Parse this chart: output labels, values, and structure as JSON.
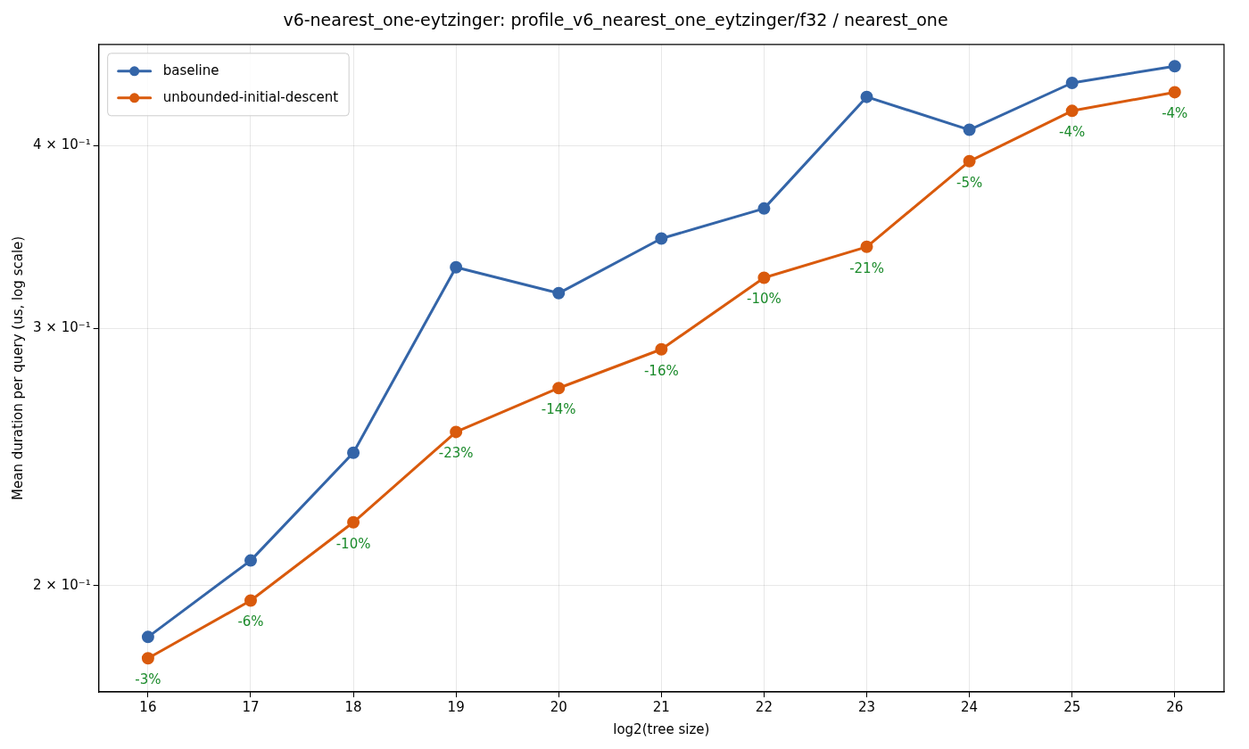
{
  "chart_data": {
    "type": "line",
    "title": "v6-nearest_one-eytzinger: profile_v6_nearest_one_eytzinger/f32 / nearest_one",
    "xlabel": "log2(tree size)",
    "ylabel": "Mean duration per query (us, log scale)",
    "x": [
      16,
      17,
      18,
      19,
      20,
      21,
      22,
      23,
      24,
      25,
      26
    ],
    "series": [
      {
        "name": "baseline",
        "color": "#3465a8",
        "values": [
          0.1845,
          0.2081,
          0.2466,
          0.3302,
          0.317,
          0.3455,
          0.3622,
          0.4318,
          0.41,
          0.4414,
          0.4532
        ]
      },
      {
        "name": "unbounded-initial-descent",
        "color": "#d95a0c",
        "values": [
          0.1784,
          0.1954,
          0.221,
          0.2548,
          0.273,
          0.2902,
          0.3248,
          0.341,
          0.3902,
          0.4224,
          0.435
        ]
      }
    ],
    "annotations": [
      {
        "text": "-3%",
        "x": 16,
        "y": 0.1784
      },
      {
        "text": "-6%",
        "x": 17,
        "y": 0.1954
      },
      {
        "text": "-10%",
        "x": 18,
        "y": 0.221
      },
      {
        "text": "-23%",
        "x": 19,
        "y": 0.2548
      },
      {
        "text": "-14%",
        "x": 20,
        "y": 0.273
      },
      {
        "text": "-16%",
        "x": 21,
        "y": 0.2902
      },
      {
        "text": "-10%",
        "x": 22,
        "y": 0.3248
      },
      {
        "text": "-21%",
        "x": 23,
        "y": 0.341
      },
      {
        "text": "-5%",
        "x": 24,
        "y": 0.3902
      },
      {
        "text": "-4%",
        "x": 25,
        "y": 0.4224
      },
      {
        "text": "-4%",
        "x": 26,
        "y": 0.435
      }
    ],
    "xlim": [
      15.52,
      26.48
    ],
    "xticks": [
      16,
      17,
      18,
      19,
      20,
      21,
      22,
      23,
      24,
      25,
      26
    ],
    "ylim": [
      0.1692,
      0.469
    ],
    "yticks": [
      {
        "value": 0.2,
        "label": "2 × 10⁻¹"
      },
      {
        "value": 0.3,
        "label": "3 × 10⁻¹"
      },
      {
        "value": 0.4,
        "label": "4 × 10⁻¹"
      }
    ],
    "log": "y",
    "grid": true,
    "legend": "top left",
    "marker": "circle",
    "line_style": "solid"
  }
}
